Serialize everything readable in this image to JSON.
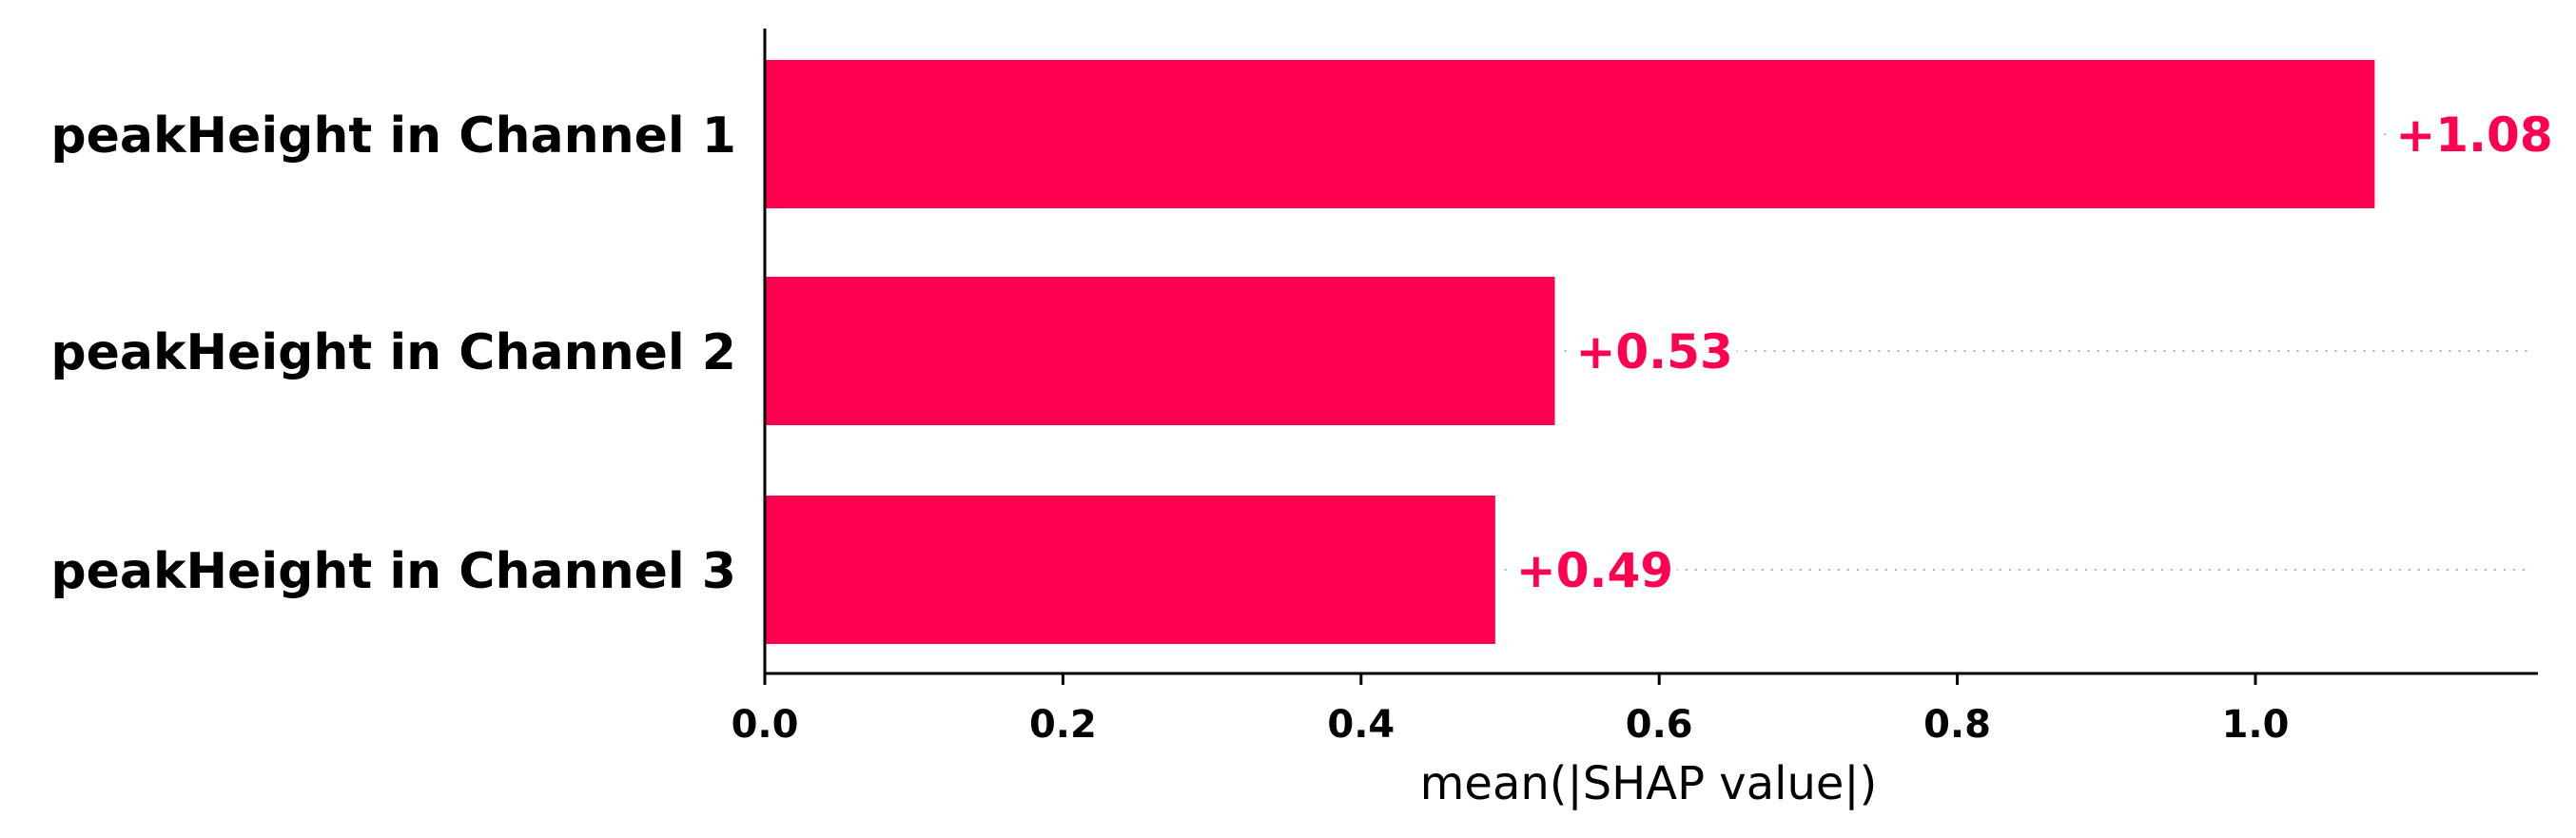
{
  "chart_data": {
    "type": "bar",
    "orientation": "horizontal",
    "categories": [
      "peakHeight in Channel 1",
      "peakHeight in Channel 2",
      "peakHeight in Channel 3"
    ],
    "values": [
      1.08,
      0.53,
      0.49
    ],
    "value_labels": [
      "+1.08",
      "+0.53",
      "+0.49"
    ],
    "xlabel": "mean(|SHAP value|)",
    "ylabel": "",
    "title": "",
    "xlim": [
      0,
      1.19
    ],
    "xticks": [
      0.0,
      0.2,
      0.4,
      0.6,
      0.8,
      1.0
    ],
    "xtick_labels": [
      "0.0",
      "0.2",
      "0.4",
      "0.6",
      "0.8",
      "1.0"
    ],
    "grid": false,
    "bar_color": "#ff0051"
  }
}
